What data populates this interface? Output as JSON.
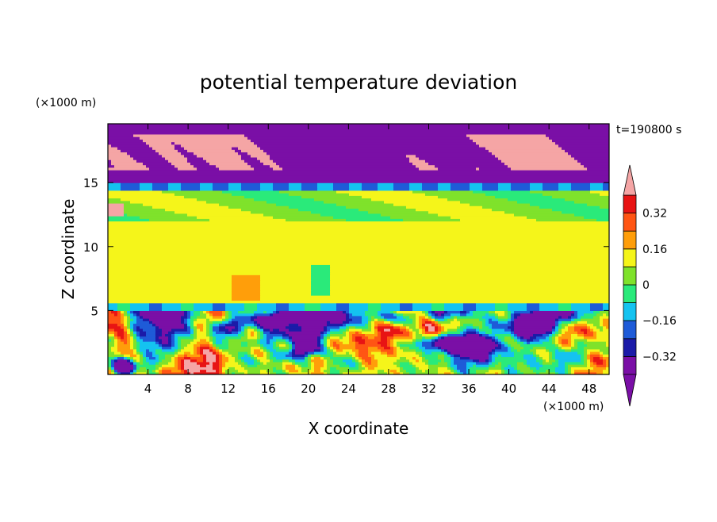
{
  "chart_data": {
    "type": "heatmap",
    "title": "potential temperature deviation",
    "xlabel": "X coordinate",
    "ylabel": "Z coordinate",
    "x_unit": "(×1000 m)",
    "y_unit": "(×1000 m)",
    "time_label": "t=190800 s",
    "xlim": [
      0,
      50
    ],
    "ylim": [
      0,
      19.6
    ],
    "x_ticks": [
      4,
      8,
      12,
      16,
      20,
      24,
      28,
      32,
      36,
      40,
      44,
      48
    ],
    "y_ticks": [
      5,
      10,
      15
    ],
    "colorbar": {
      "levels": [
        -0.4,
        -0.32,
        -0.24,
        -0.16,
        -0.08,
        0,
        0.08,
        0.16,
        0.24,
        0.32,
        0.4
      ],
      "labels": [
        "0.32",
        "0.16",
        "0",
        "−0.16",
        "−0.32"
      ],
      "label_values": [
        0.32,
        0.16,
        0,
        -0.16,
        -0.32
      ],
      "colors": [
        "#7a0fa6",
        "#1b1ba8",
        "#1e5bd8",
        "#14c3f0",
        "#2aea7a",
        "#7fe22b",
        "#f5f51a",
        "#ff9e0a",
        "#ff5514",
        "#e81414",
        "#f5a5a5"
      ],
      "extend": "both"
    },
    "layers": [
      {
        "z_range": [
          15,
          19.6
        ],
        "dominant": "< -0.4",
        "patches": "> 0.4 (upper cloud band)"
      },
      {
        "z_range": [
          14.5,
          15
        ],
        "dominant": "-0.32 to -0.16"
      },
      {
        "z_range": [
          12,
          14.5
        ],
        "dominant": "-0.08 to 0.08"
      },
      {
        "z_range": [
          5.5,
          12
        ],
        "dominant": "0 to 0.08",
        "patches": "0.08 to 0.16 near x=14; -0.16 to -0.08 near x=21"
      },
      {
        "z_range": [
          5,
          5.5
        ],
        "dominant": "-0.24 to -0.08"
      },
      {
        "z_range": [
          0,
          5
        ],
        "dominant": "turbulent mix from < -0.4 to > 0.4"
      }
    ]
  }
}
